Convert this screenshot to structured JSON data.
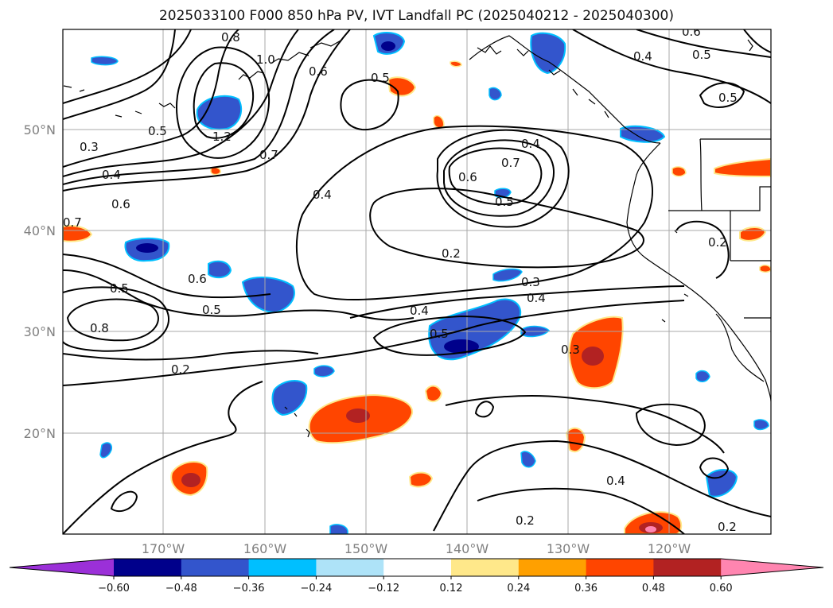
{
  "title": "2025033100 F000 850 hPa PV, IVT Landfall PC (2025040212 - 2025040300)",
  "lat_labels": [
    "50°N",
    "40°N",
    "30°N",
    "20°N"
  ],
  "lon_labels": [
    "170°W",
    "160°W",
    "150°W",
    "140°W",
    "130°W",
    "120°W"
  ],
  "colorbar": {
    "colors": [
      "#9b30d8",
      "#00008b",
      "#3355cc",
      "#00bfff",
      "#aee3f8",
      "#ffffff",
      "#ffe88a",
      "#ffa000",
      "#ff4500",
      "#b22222",
      "#ff85b0"
    ],
    "ticks": [
      "−0.60",
      "−0.48",
      "−0.36",
      "−0.24",
      "−0.12",
      "0.12",
      "0.24",
      "0.36",
      "0.48",
      "0.60"
    ]
  },
  "contour_labels": [
    "0.3",
    "0.8",
    "1.0",
    "0.6",
    "0.5",
    "1.2",
    "0.7",
    "0.4",
    "0.6",
    "0.5",
    "0.4",
    "0.4",
    "0.6",
    "0.7",
    "0.5",
    "0.2",
    "0.3",
    "0.4",
    "0.4",
    "0.5",
    "0.3",
    "0.6",
    "0.5",
    "0.8",
    "0.2",
    "0.7",
    "0.5",
    "0.4",
    "0.2",
    "0.2",
    "0.6",
    "0.5",
    "0.4",
    "0.5",
    "0.2"
  ]
}
